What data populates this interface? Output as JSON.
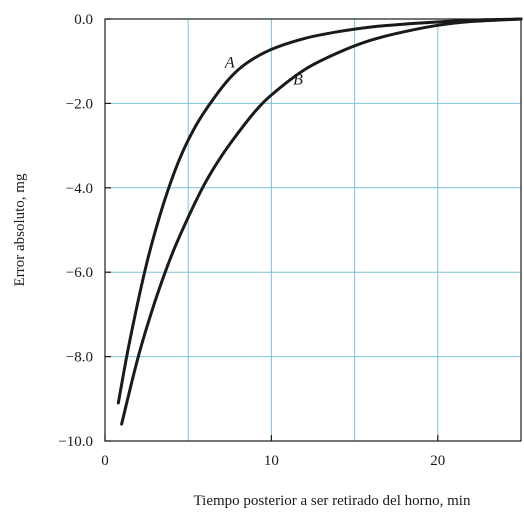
{
  "chart_data": {
    "type": "line",
    "title": "",
    "xlabel": "Tiempo posterior a ser retirado del horno, min",
    "ylabel": "Error absoluto, mg",
    "xlim": [
      0,
      25
    ],
    "ylim": [
      -10,
      0
    ],
    "x_ticks": [
      0,
      10,
      20
    ],
    "x_tick_labels": [
      "0",
      "10",
      "20"
    ],
    "y_ticks": [
      0,
      -2,
      -4,
      -6,
      -8,
      -10
    ],
    "y_tick_labels": [
      "0.0",
      "−2.0",
      "−4.0",
      "−6.0",
      "−8.0",
      "−10.0"
    ],
    "grid": true,
    "grid_x": [
      5,
      10,
      15,
      20
    ],
    "grid_y": [
      -2,
      -4,
      -6,
      -8
    ],
    "series": [
      {
        "name": "A",
        "x": [
          0.8,
          1.5,
          2.5,
          3.5,
          4.5,
          5.5,
          6.5,
          7.5,
          8.5,
          10,
          12,
          14,
          16,
          18,
          20,
          22,
          24,
          25
        ],
        "y": [
          -9.1,
          -7.6,
          -5.8,
          -4.4,
          -3.3,
          -2.5,
          -1.9,
          -1.4,
          -1.05,
          -0.72,
          -0.46,
          -0.3,
          -0.19,
          -0.12,
          -0.07,
          -0.03,
          -0.01,
          0.0
        ]
      },
      {
        "name": "B",
        "x": [
          1.0,
          2,
          3,
          4,
          5,
          6,
          7,
          8,
          9,
          10,
          12,
          14,
          16,
          18,
          20,
          22,
          24,
          25
        ],
        "y": [
          -9.6,
          -8.0,
          -6.7,
          -5.6,
          -4.7,
          -3.9,
          -3.25,
          -2.7,
          -2.2,
          -1.8,
          -1.2,
          -0.8,
          -0.5,
          -0.3,
          -0.15,
          -0.06,
          -0.02,
          0.0
        ]
      }
    ],
    "curve_labels": [
      {
        "text": "A",
        "x": 7.5,
        "y": -1.15
      },
      {
        "text": "B",
        "x": 11.6,
        "y": -1.55
      }
    ]
  }
}
